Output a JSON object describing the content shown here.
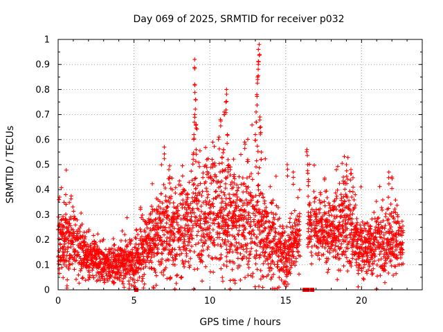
{
  "chart_data": {
    "type": "scatter",
    "title": "Day 069 of 2025, SRMTID for receiver p032",
    "xlabel": "GPS time / hours",
    "ylabel": "SRMTID / TECUs",
    "xlim": [
      0,
      24
    ],
    "ylim": [
      0,
      1
    ],
    "xticks": [
      0,
      5,
      10,
      15,
      20
    ],
    "yticks": [
      0,
      0.1,
      0.2,
      0.3,
      0.4,
      0.5,
      0.6,
      0.7,
      0.8,
      0.9,
      1
    ],
    "xtick_labels": [
      "0",
      "5",
      "10",
      "15",
      "20"
    ],
    "ytick_labels": [
      "0",
      "0.1",
      "0.2",
      "0.3",
      "0.4",
      "0.5",
      "0.6",
      "0.7",
      "0.8",
      "0.9",
      "1"
    ],
    "grid": true,
    "marker": "+",
    "color": "#ff0000",
    "data_gaps_hours": [
      [
        15.95,
        16.45
      ],
      [
        16.75,
        16.85
      ]
    ],
    "zero_markers_x": [
      5.15,
      16.25,
      16.35,
      16.45,
      16.75
    ],
    "envelope": [
      {
        "hours": 0.0,
        "base": 0.18,
        "spread": 0.06
      },
      {
        "hours": 1.0,
        "base": 0.2,
        "spread": 0.07
      },
      {
        "hours": 2.0,
        "base": 0.13,
        "spread": 0.05
      },
      {
        "hours": 3.0,
        "base": 0.1,
        "spread": 0.035
      },
      {
        "hours": 4.0,
        "base": 0.11,
        "spread": 0.04
      },
      {
        "hours": 5.0,
        "base": 0.12,
        "spread": 0.05
      },
      {
        "hours": 6.0,
        "base": 0.18,
        "spread": 0.07
      },
      {
        "hours": 7.0,
        "base": 0.24,
        "spread": 0.09
      },
      {
        "hours": 8.0,
        "base": 0.23,
        "spread": 0.09
      },
      {
        "hours": 9.0,
        "base": 0.28,
        "spread": 0.11
      },
      {
        "hours": 10.0,
        "base": 0.3,
        "spread": 0.11
      },
      {
        "hours": 11.0,
        "base": 0.3,
        "spread": 0.12
      },
      {
        "hours": 12.0,
        "base": 0.25,
        "spread": 0.1
      },
      {
        "hours": 13.0,
        "base": 0.27,
        "spread": 0.12
      },
      {
        "hours": 14.0,
        "base": 0.2,
        "spread": 0.09
      },
      {
        "hours": 15.0,
        "base": 0.13,
        "spread": 0.06
      },
      {
        "hours": 16.0,
        "base": 0.24,
        "spread": 0.07
      },
      {
        "hours": 17.0,
        "base": 0.27,
        "spread": 0.06
      },
      {
        "hours": 18.0,
        "base": 0.22,
        "spread": 0.07
      },
      {
        "hours": 19.0,
        "base": 0.28,
        "spread": 0.09
      },
      {
        "hours": 20.0,
        "base": 0.16,
        "spread": 0.06
      },
      {
        "hours": 21.0,
        "base": 0.18,
        "spread": 0.07
      },
      {
        "hours": 22.0,
        "base": 0.2,
        "spread": 0.07
      },
      {
        "hours": 22.75,
        "base": 0.18,
        "spread": 0.05
      }
    ],
    "spikes": [
      {
        "x": 8.9,
        "y": 0.54
      },
      {
        "x": 8.95,
        "y": 0.62
      },
      {
        "x": 9.0,
        "y": 0.7
      },
      {
        "x": 9.0,
        "y": 0.82
      },
      {
        "x": 9.0,
        "y": 0.92
      },
      {
        "x": 9.05,
        "y": 0.76
      },
      {
        "x": 9.1,
        "y": 0.66
      },
      {
        "x": 9.1,
        "y": 0.56
      },
      {
        "x": 10.6,
        "y": 0.61
      },
      {
        "x": 10.7,
        "y": 0.68
      },
      {
        "x": 10.9,
        "y": 0.56
      },
      {
        "x": 10.95,
        "y": 0.71
      },
      {
        "x": 11.05,
        "y": 0.75
      },
      {
        "x": 11.1,
        "y": 0.8
      },
      {
        "x": 11.15,
        "y": 0.62
      },
      {
        "x": 11.2,
        "y": 0.52
      },
      {
        "x": 12.3,
        "y": 0.59
      },
      {
        "x": 12.5,
        "y": 0.52
      },
      {
        "x": 13.0,
        "y": 0.62
      },
      {
        "x": 13.05,
        "y": 0.71
      },
      {
        "x": 13.1,
        "y": 0.78
      },
      {
        "x": 13.15,
        "y": 0.85
      },
      {
        "x": 13.2,
        "y": 0.9
      },
      {
        "x": 13.2,
        "y": 0.96
      },
      {
        "x": 13.25,
        "y": 0.98
      },
      {
        "x": 13.3,
        "y": 0.69
      },
      {
        "x": 13.35,
        "y": 0.65
      },
      {
        "x": 13.4,
        "y": 0.55
      },
      {
        "x": 7.0,
        "y": 0.57
      },
      {
        "x": 7.3,
        "y": 0.48
      },
      {
        "x": 9.8,
        "y": 0.52
      },
      {
        "x": 10.2,
        "y": 0.5
      },
      {
        "x": 11.6,
        "y": 0.46
      },
      {
        "x": 16.4,
        "y": 0.56
      },
      {
        "x": 16.45,
        "y": 0.5
      },
      {
        "x": 16.5,
        "y": 0.44
      },
      {
        "x": 15.5,
        "y": 0.47
      },
      {
        "x": 15.1,
        "y": 0.5
      },
      {
        "x": 18.8,
        "y": 0.45
      },
      {
        "x": 19.0,
        "y": 0.5
      },
      {
        "x": 19.3,
        "y": 0.48
      },
      {
        "x": 21.8,
        "y": 0.47
      },
      {
        "x": 22.0,
        "y": 0.45
      },
      {
        "x": 7.4,
        "y": 0.05
      },
      {
        "x": 0.6,
        "y": 0.04
      },
      {
        "x": 0.5,
        "y": 0.38
      }
    ]
  }
}
